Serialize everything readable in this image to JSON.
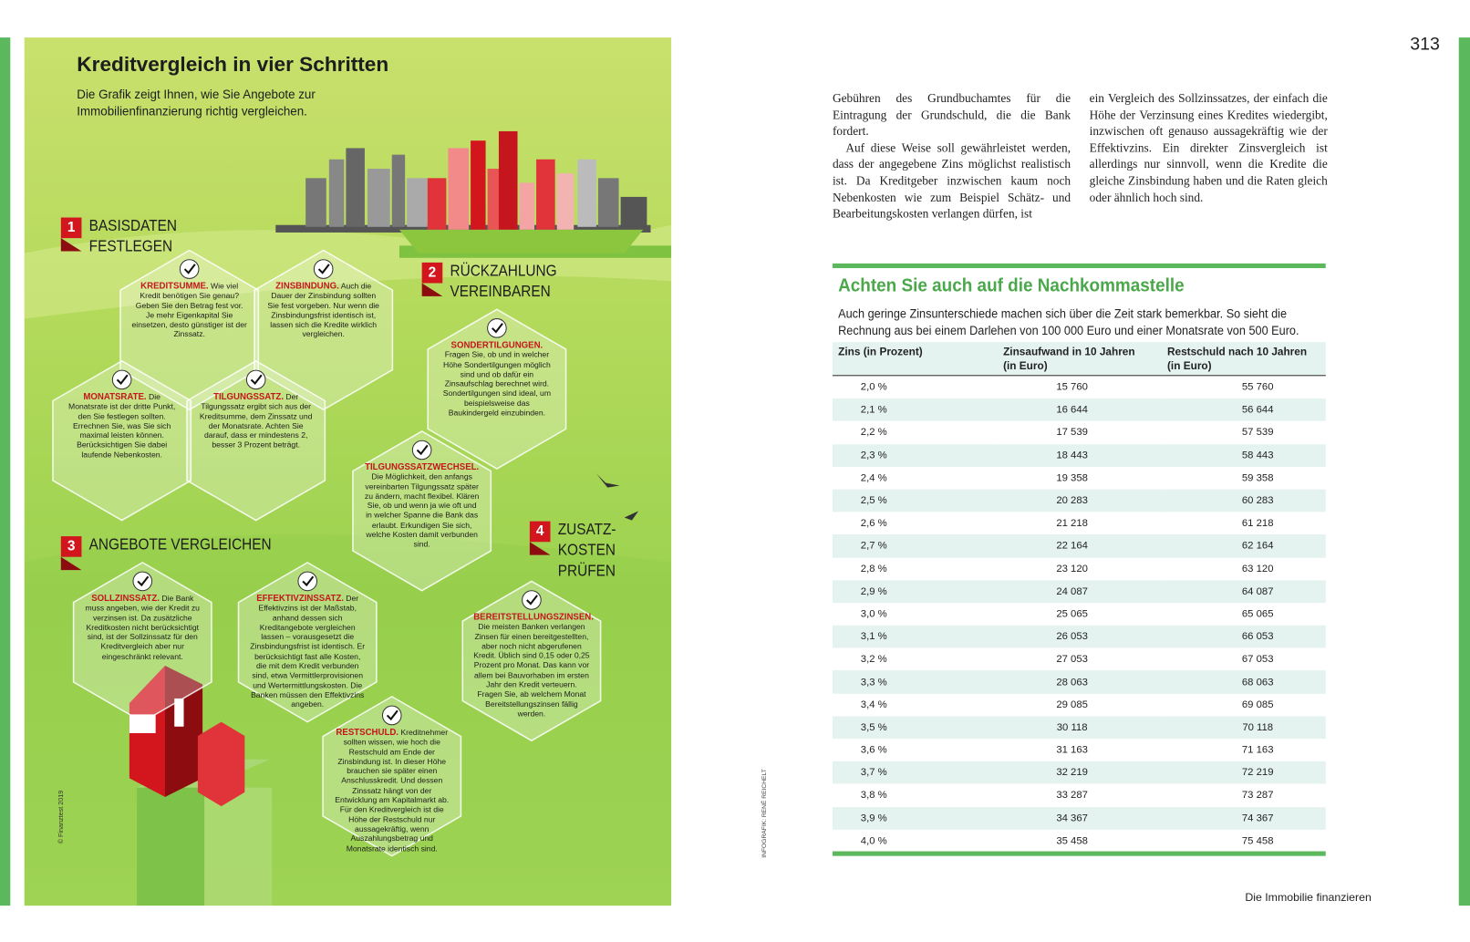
{
  "left": {
    "title": "Kreditvergleich in vier Schritten",
    "intro": "Die Grafik zeigt Ihnen, wie Sie Angebote zur Immobilienfinanzierung richtig vergleichen.",
    "credit": "© Finanztest 2019",
    "infographic_credit": "INFOGRAFIK: RENÉ REICHELT",
    "steps": [
      {
        "number": "1",
        "lines": [
          "BASISDATEN",
          "FESTLEGEN"
        ]
      },
      {
        "number": "2",
        "lines": [
          "RÜCKZAHLUNG",
          "VEREINBAREN"
        ]
      },
      {
        "number": "3",
        "lines": [
          "ANGEBOTE VERGLEICHEN"
        ]
      },
      {
        "number": "4",
        "lines": [
          "ZUSATZ-",
          "KOSTEN",
          "PRÜFEN"
        ]
      }
    ],
    "hexagons": [
      {
        "label": "KREDITSUMME.",
        "text": "Wie viel Kredit benötigen Sie genau? Geben Sie den Betrag fest vor. Je mehr Eigenkapital Sie einsetzen, desto günstiger ist der Zinssatz."
      },
      {
        "label": "ZINSBINDUNG.",
        "text": "Auch die Dauer der Zinsbindung sollten Sie fest vorgeben. Nur wenn die Zinsbindungsfrist identisch ist, lassen sich die Kredite wirklich vergleichen."
      },
      {
        "label": "MONATSRATE.",
        "text": "Die Monatsrate ist der dritte Punkt, den Sie festlegen sollten. Errechnen Sie, was Sie sich maximal leisten können. Berücksichtigen Sie dabei laufende Nebenkosten."
      },
      {
        "label": "TILGUNGSSATZ.",
        "text": "Der Tilgungssatz ergibt sich aus der Kreditsumme, dem Zinssatz und der Monatsrate. Achten Sie darauf, dass er mindestens 2, besser 3 Prozent beträgt."
      },
      {
        "label": "SONDERTILGUNGEN.",
        "text": "Fragen Sie, ob und in welcher Höhe Sondertilgungen möglich sind und ob dafür ein Zinsaufschlag berechnet wird. Sondertilgungen sind ideal, um beispielsweise das Baukindergeld einzubinden."
      },
      {
        "label": "TILGUNGSSATZWECHSEL.",
        "text": "Die Möglichkeit, den anfangs vereinbarten Tilgungssatz später zu ändern, macht flexibel. Klären Sie, ob und wenn ja wie oft und in welcher Spanne die Bank das erlaubt. Erkundigen Sie sich, welche Kosten damit verbunden sind."
      },
      {
        "label": "SOLLZINSSATZ.",
        "text": "Die Bank muss angeben, wie der Kredit zu verzinsen ist. Da zusätzliche Kreditkosten nicht berücksichtigt sind, ist der Sollzinssatz für den Kreditvergleich aber nur eingeschränkt relevant."
      },
      {
        "label": "EFFEKTIVZINSSATZ.",
        "text": "Der Effektivzins ist der Maßstab, anhand dessen sich Kreditangebote vergleichen lassen – vorausgesetzt die Zinsbindungsfrist ist identisch. Er berücksichtigt fast alle Kosten, die mit dem Kredit verbunden sind, etwa Vermittlerprovisionen und Wertermittlungskosten. Die Banken müssen den Effektivzins angeben."
      },
      {
        "label": "RESTSCHULD.",
        "text": "Kreditnehmer sollten wissen, wie hoch die Restschuld am Ende der Zinsbindung ist. In dieser Höhe brauchen sie später einen Anschlusskredit. Und dessen Zinssatz hängt von der Entwicklung am Kapitalmarkt ab. Für den Kreditvergleich ist die Höhe der Restschuld nur aussagekräftig, wenn Auszahlungsbetrag und Monatsrate identisch sind."
      },
      {
        "label": "BEREITSTELLUNGSZINSEN.",
        "text": "Die meisten Banken verlangen Zinsen für einen bereitgestellten, aber noch nicht abgerufenen Kredit. Üblich sind 0,15 oder 0,25 Prozent pro Monat. Das kann vor allem bei Bauvorhaben im ersten Jahr den Kredit verteuern. Fragen Sie, ab welchem Monat Bereitstellungszinsen fällig werden."
      }
    ]
  },
  "right": {
    "page_number": "313",
    "columns": [
      [
        "Gebühren des Grundbuchamtes für die Eintragung der Grundschuld, die die Bank fordert.",
        "Auf diese Weise soll gewährleistet werden, dass der angegebene Zins möglichst realistisch ist. Da Kreditgeber inzwischen kaum noch Nebenkosten wie zum Beispiel Schätz- und Bearbeitungskosten verlangen dürfen, ist"
      ],
      [
        "ein Vergleich des Sollzinssatzes, der einfach die Höhe der Verzinsung eines Kredites wiedergibt, inzwischen oft genauso aussagekräftig wie der Effektivzins. Ein direkter Zinsvergleich ist allerdings nur sinnvoll, wenn die Kredite die gleiche Zinsbindung haben und die Raten gleich oder ähnlich hoch sind."
      ]
    ],
    "box": {
      "title": "Achten Sie auch auf die Nachkommastelle",
      "text": "Auch geringe Zinsunterschiede machen sich über die Zeit stark bemerkbar. So sieht die Rechnung aus bei einem Darlehen von 100 000 Euro und einer Monatsrate von 500 Euro.",
      "headers": [
        [
          "Zins (in Prozent)"
        ],
        [
          "Zinsaufwand in 10 Jahren",
          "(in Euro)"
        ],
        [
          "Restschuld nach 10 Jahren",
          "(in Euro)"
        ]
      ],
      "rows": [
        [
          "2,0 %",
          "15 760",
          "55 760"
        ],
        [
          "2,1 %",
          "16 644",
          "56 644"
        ],
        [
          "2,2 %",
          "17 539",
          "57 539"
        ],
        [
          "2,3 %",
          "18 443",
          "58 443"
        ],
        [
          "2,4 %",
          "19 358",
          "59 358"
        ],
        [
          "2,5 %",
          "20 283",
          "60 283"
        ],
        [
          "2,6 %",
          "21 218",
          "61 218"
        ],
        [
          "2,7 %",
          "22 164",
          "62 164"
        ],
        [
          "2,8 %",
          "23 120",
          "63 120"
        ],
        [
          "2,9 %",
          "24 087",
          "64 087"
        ],
        [
          "3,0 %",
          "25 065",
          "65 065"
        ],
        [
          "3,1 %",
          "26 053",
          "66 053"
        ],
        [
          "3,2 %",
          "27 053",
          "67 053"
        ],
        [
          "3,3 %",
          "28 063",
          "68 063"
        ],
        [
          "3,4 %",
          "29 085",
          "69 085"
        ],
        [
          "3,5 %",
          "30 118",
          "70 118"
        ],
        [
          "3,6 %",
          "31 163",
          "71 163"
        ],
        [
          "3,7 %",
          "32 219",
          "72 219"
        ],
        [
          "3,8 %",
          "33 287",
          "73 287"
        ],
        [
          "3,9 %",
          "34 367",
          "74 367"
        ],
        [
          "4,0 %",
          "35 458",
          "75 458"
        ]
      ]
    },
    "footer": "Die Immobilie finanzieren"
  }
}
